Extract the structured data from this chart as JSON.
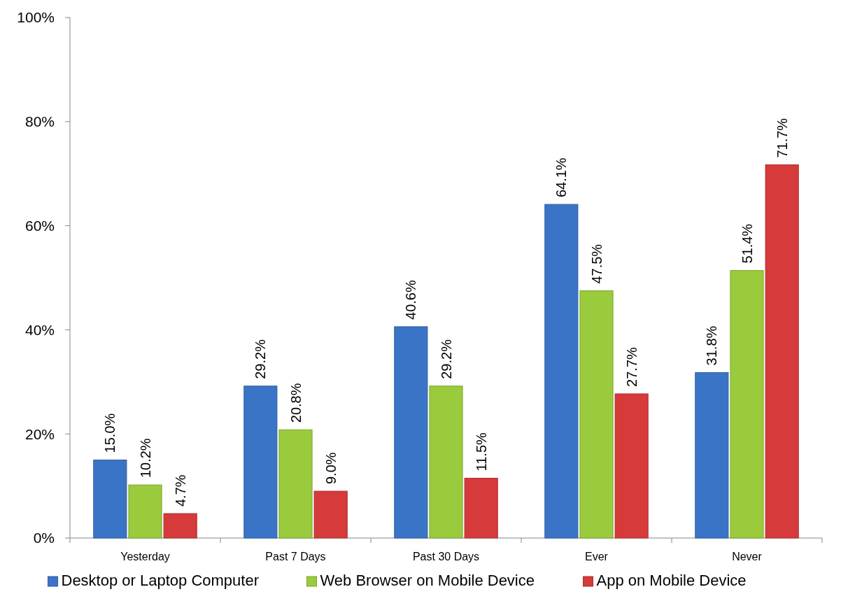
{
  "chart_data": {
    "type": "bar",
    "categories": [
      "Yesterday",
      "Past 7 Days",
      "Past 30 Days",
      "Ever",
      "Never"
    ],
    "series": [
      {
        "name": "Desktop or Laptop Computer",
        "color": "#3a74c6",
        "values": [
          15.0,
          29.2,
          40.6,
          64.1,
          31.8
        ],
        "value_labels": [
          "15.0%",
          "29.2%",
          "40.6%",
          "64.1%",
          "31.8%"
        ]
      },
      {
        "name": "Web Browser on Mobile Device",
        "color": "#9acb3c",
        "values": [
          10.2,
          20.8,
          29.2,
          47.5,
          51.4
        ],
        "value_labels": [
          "10.2%",
          "20.8%",
          "29.2%",
          "47.5%",
          "51.4%"
        ]
      },
      {
        "name": "App on Mobile Device",
        "color": "#d63a3a",
        "values": [
          4.7,
          9.0,
          11.5,
          27.7,
          71.7
        ],
        "value_labels": [
          "4.7%",
          "9.0%",
          "11.5%",
          "27.7%",
          "71.7%"
        ]
      }
    ],
    "ylim": [
      0,
      100
    ],
    "yticks": [
      {
        "value": 0,
        "label": "0%"
      },
      {
        "value": 20,
        "label": "20%"
      },
      {
        "value": 40,
        "label": "40%"
      },
      {
        "value": 60,
        "label": "60%"
      },
      {
        "value": 80,
        "label": "80%"
      },
      {
        "value": 100,
        "label": "100%"
      }
    ],
    "grid": false,
    "legend": "bottom"
  }
}
